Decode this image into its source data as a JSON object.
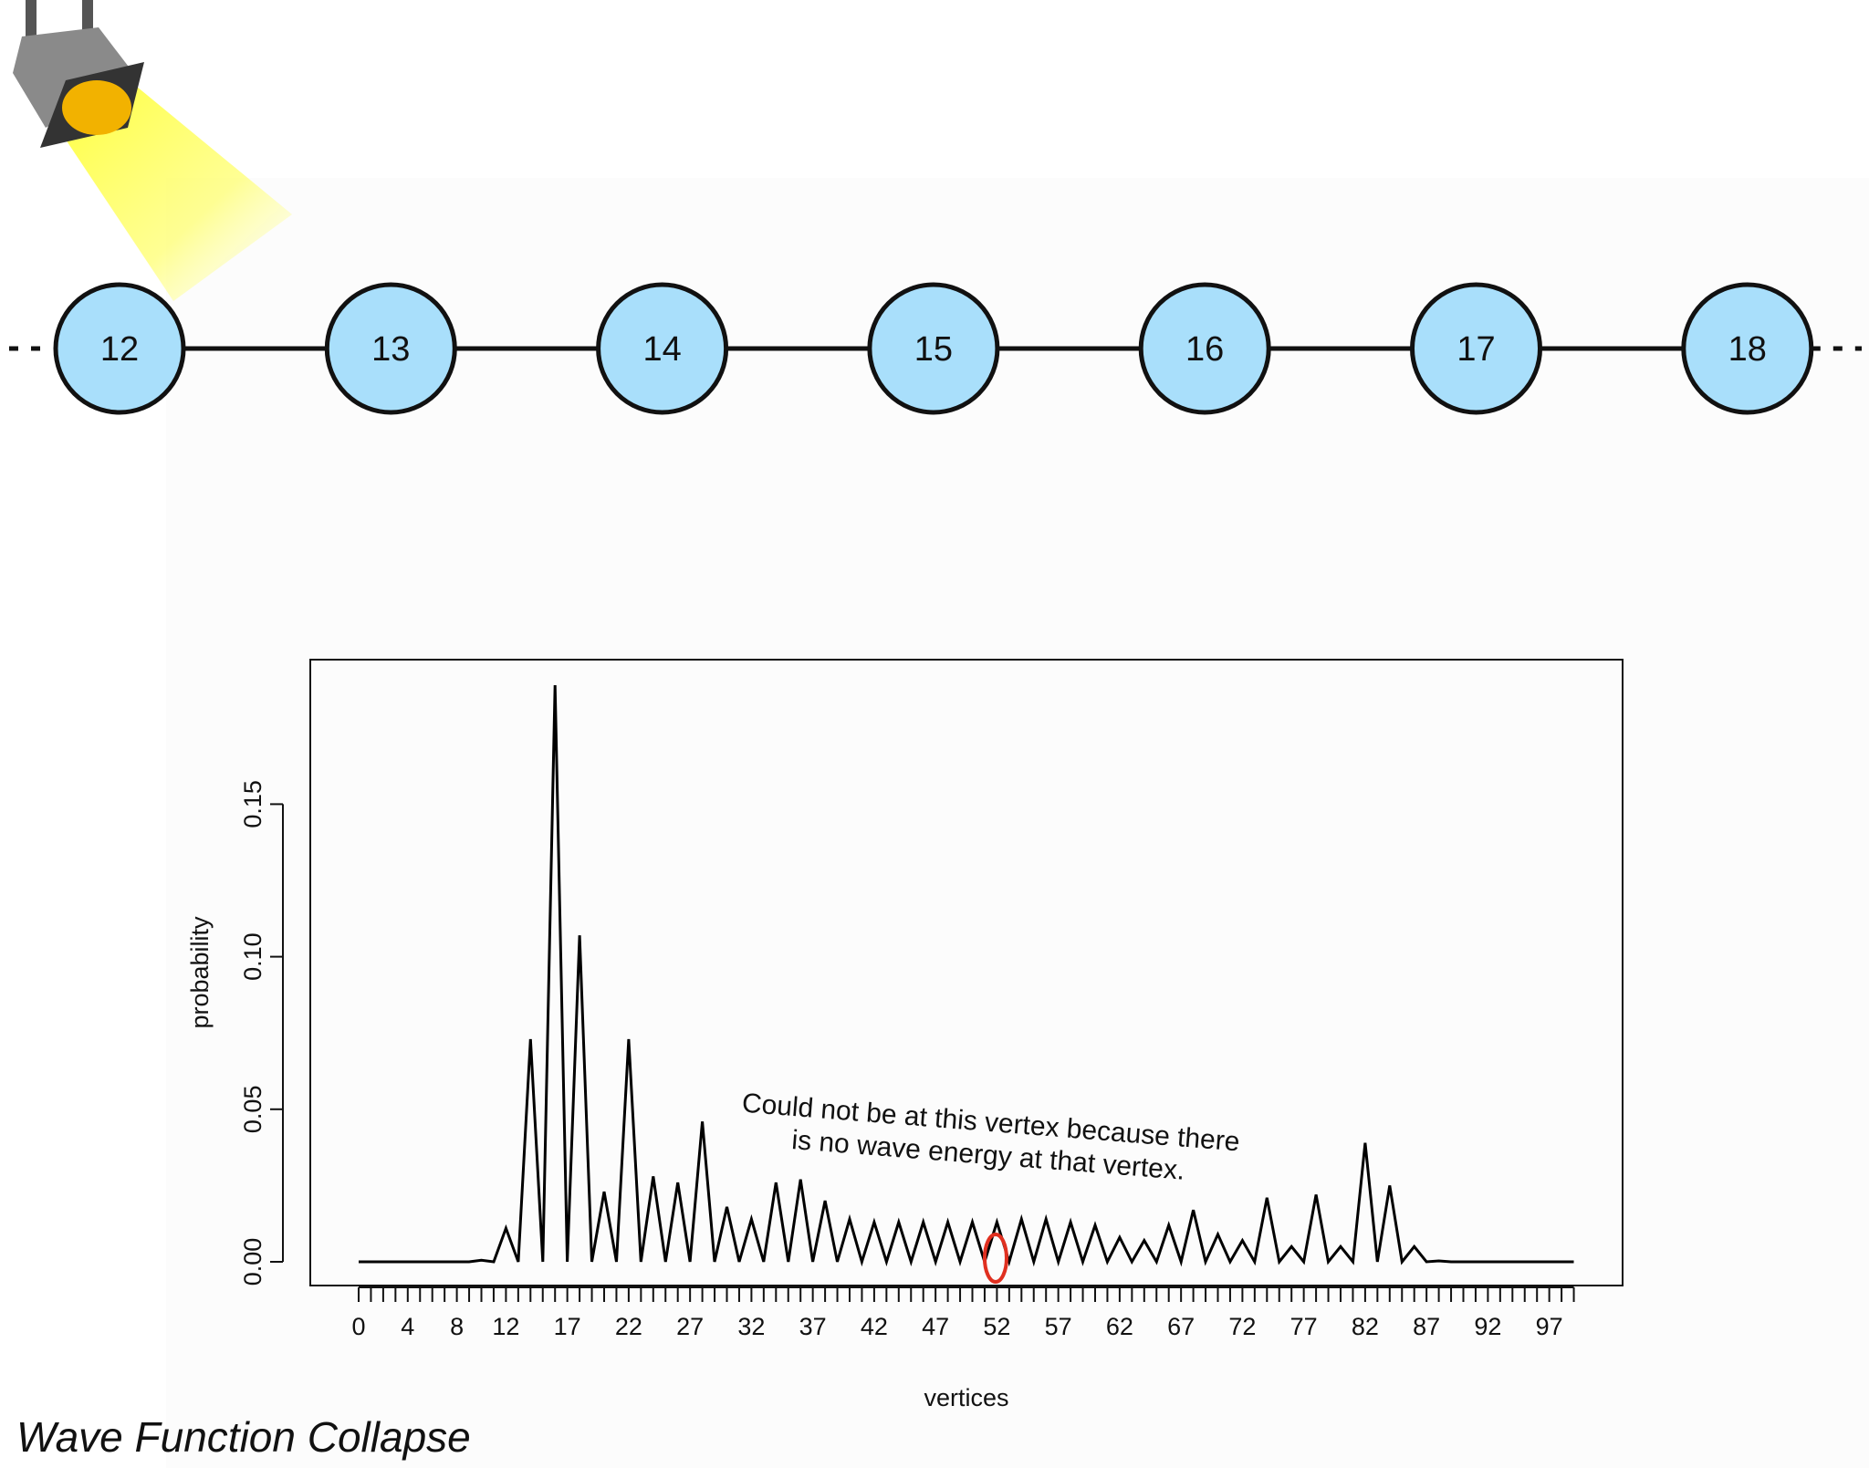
{
  "caption": "Wave Function Collapse",
  "graph": {
    "nodes": [
      "12",
      "13",
      "14",
      "15",
      "16",
      "17",
      "18"
    ],
    "node_fill": "#a9dffb",
    "edge_color": "#111111"
  },
  "spotlight": {
    "beam_color": "#ffff55",
    "lamp_color": "#f2b200",
    "housing_color": "#333333"
  },
  "chart_data": {
    "type": "line",
    "xlabel": "vertices",
    "ylabel": "probability",
    "xlim": [
      0,
      100
    ],
    "ylim": [
      0.0,
      0.19
    ],
    "yticks": [
      0.0,
      0.05,
      0.1,
      0.15
    ],
    "ytick_labels": [
      "0.00",
      "0.05",
      "0.10",
      "0.15"
    ],
    "xtick_labels": [
      "0",
      "4",
      "8",
      "12",
      "17",
      "22",
      "27",
      "32",
      "37",
      "42",
      "47",
      "52",
      "57",
      "62",
      "67",
      "72",
      "77",
      "82",
      "87",
      "92",
      "97"
    ],
    "xtick_label_values": [
      0,
      4,
      8,
      12,
      17,
      22,
      27,
      32,
      37,
      42,
      47,
      52,
      57,
      62,
      67,
      72,
      77,
      82,
      87,
      92,
      97
    ],
    "series": [
      {
        "name": "probability",
        "color": "#000000",
        "x": [
          0,
          1,
          2,
          3,
          4,
          5,
          6,
          7,
          8,
          9,
          10,
          11,
          12,
          13,
          14,
          15,
          16,
          17,
          18,
          19,
          20,
          21,
          22,
          23,
          24,
          25,
          26,
          27,
          28,
          29,
          30,
          31,
          32,
          33,
          34,
          35,
          36,
          37,
          38,
          39,
          40,
          41,
          42,
          43,
          44,
          45,
          46,
          47,
          48,
          49,
          50,
          51,
          52,
          53,
          54,
          55,
          56,
          57,
          58,
          59,
          60,
          61,
          62,
          63,
          64,
          65,
          66,
          67,
          68,
          69,
          70,
          71,
          72,
          73,
          74,
          75,
          76,
          77,
          78,
          79,
          80,
          81,
          82,
          83,
          84,
          85,
          86,
          87,
          88,
          89,
          90,
          91,
          92,
          93,
          94,
          95,
          96,
          97,
          98,
          99
        ],
        "values": [
          0,
          0,
          0,
          0,
          0,
          0,
          0,
          0,
          0,
          0,
          0.0005,
          0,
          0.011,
          0,
          0.073,
          0,
          0.189,
          0,
          0.107,
          0,
          0.023,
          0,
          0.073,
          0,
          0.028,
          0,
          0.026,
          0,
          0.046,
          0,
          0.018,
          0,
          0.014,
          0,
          0.026,
          0,
          0.027,
          0,
          0.02,
          0,
          0.014,
          0,
          0.013,
          0,
          0.013,
          0,
          0.013,
          0,
          0.013,
          0,
          0.013,
          0,
          0.013,
          0,
          0.014,
          0,
          0.014,
          0,
          0.013,
          0,
          0.012,
          0,
          0.008,
          0,
          0.007,
          0,
          0.012,
          0,
          0.017,
          0,
          0.009,
          0,
          0.007,
          0,
          0.021,
          0,
          0.005,
          0,
          0.022,
          0,
          0.005,
          0,
          0.039,
          0,
          0.025,
          0,
          0.005,
          0,
          0.0003,
          0,
          0,
          0,
          0,
          0,
          0,
          0,
          0,
          0,
          0,
          0
        ]
      }
    ],
    "annotation": {
      "text_line1": "Could not be at this vertex because there",
      "text_line2": "is no wave energy at that vertex.",
      "marker_x": 51,
      "marker_color": "#e03020"
    }
  }
}
